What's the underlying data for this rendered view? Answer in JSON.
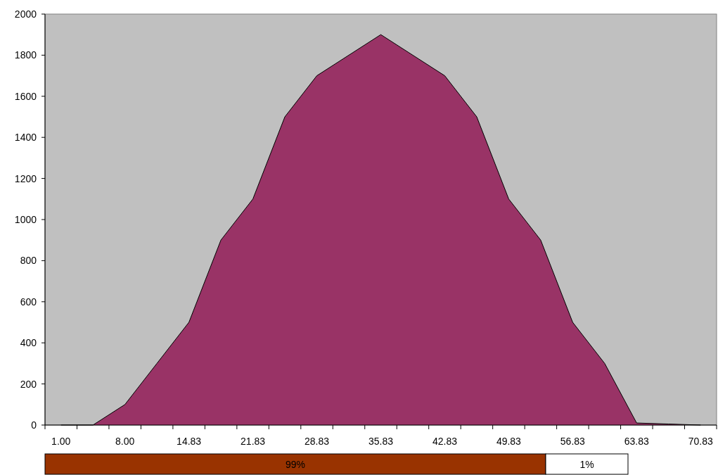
{
  "chart_data": {
    "type": "area",
    "categories": [
      "1.00",
      null,
      "8.00",
      null,
      "14.83",
      null,
      "21.83",
      null,
      "28.83",
      null,
      "35.83",
      null,
      "42.83",
      null,
      "49.83",
      null,
      "56.83",
      null,
      "63.83",
      null,
      "70.83"
    ],
    "values": [
      0,
      0,
      100,
      300,
      500,
      900,
      1100,
      1500,
      1700,
      1800,
      1900,
      1800,
      1700,
      1500,
      1100,
      900,
      500,
      300,
      10,
      5,
      0
    ],
    "color": "#993366",
    "ylim": [
      0,
      2000
    ],
    "yticks": [
      0,
      200,
      400,
      600,
      800,
      1000,
      1200,
      1400,
      1600,
      1800,
      2000
    ],
    "grid": false,
    "annotations": [
      "99%",
      "1%"
    ]
  }
}
